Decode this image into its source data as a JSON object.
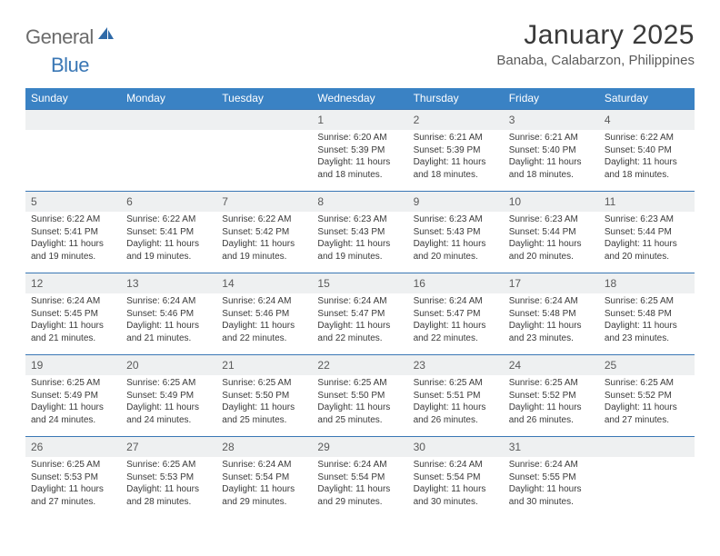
{
  "brand": {
    "part1": "General",
    "part2": "Blue"
  },
  "title": "January 2025",
  "location": "Banaba, Calabarzon, Philippines",
  "colors": {
    "header_bg": "#3a82c4",
    "header_fg": "#ffffff",
    "rule": "#3a77b5",
    "daynum_bg": "#eef0f1",
    "text": "#3a3a3a",
    "brand_gray": "#6b6b6b",
    "brand_blue": "#3a77b5"
  },
  "dayNames": [
    "Sunday",
    "Monday",
    "Tuesday",
    "Wednesday",
    "Thursday",
    "Friday",
    "Saturday"
  ],
  "weeks": [
    [
      null,
      null,
      null,
      {
        "n": "1",
        "rise": "6:20 AM",
        "set": "5:39 PM",
        "dlh": "11",
        "dlm": "18"
      },
      {
        "n": "2",
        "rise": "6:21 AM",
        "set": "5:39 PM",
        "dlh": "11",
        "dlm": "18"
      },
      {
        "n": "3",
        "rise": "6:21 AM",
        "set": "5:40 PM",
        "dlh": "11",
        "dlm": "18"
      },
      {
        "n": "4",
        "rise": "6:22 AM",
        "set": "5:40 PM",
        "dlh": "11",
        "dlm": "18"
      }
    ],
    [
      {
        "n": "5",
        "rise": "6:22 AM",
        "set": "5:41 PM",
        "dlh": "11",
        "dlm": "19"
      },
      {
        "n": "6",
        "rise": "6:22 AM",
        "set": "5:41 PM",
        "dlh": "11",
        "dlm": "19"
      },
      {
        "n": "7",
        "rise": "6:22 AM",
        "set": "5:42 PM",
        "dlh": "11",
        "dlm": "19"
      },
      {
        "n": "8",
        "rise": "6:23 AM",
        "set": "5:43 PM",
        "dlh": "11",
        "dlm": "19"
      },
      {
        "n": "9",
        "rise": "6:23 AM",
        "set": "5:43 PM",
        "dlh": "11",
        "dlm": "20"
      },
      {
        "n": "10",
        "rise": "6:23 AM",
        "set": "5:44 PM",
        "dlh": "11",
        "dlm": "20"
      },
      {
        "n": "11",
        "rise": "6:23 AM",
        "set": "5:44 PM",
        "dlh": "11",
        "dlm": "20"
      }
    ],
    [
      {
        "n": "12",
        "rise": "6:24 AM",
        "set": "5:45 PM",
        "dlh": "11",
        "dlm": "21"
      },
      {
        "n": "13",
        "rise": "6:24 AM",
        "set": "5:46 PM",
        "dlh": "11",
        "dlm": "21"
      },
      {
        "n": "14",
        "rise": "6:24 AM",
        "set": "5:46 PM",
        "dlh": "11",
        "dlm": "22"
      },
      {
        "n": "15",
        "rise": "6:24 AM",
        "set": "5:47 PM",
        "dlh": "11",
        "dlm": "22"
      },
      {
        "n": "16",
        "rise": "6:24 AM",
        "set": "5:47 PM",
        "dlh": "11",
        "dlm": "22"
      },
      {
        "n": "17",
        "rise": "6:24 AM",
        "set": "5:48 PM",
        "dlh": "11",
        "dlm": "23"
      },
      {
        "n": "18",
        "rise": "6:25 AM",
        "set": "5:48 PM",
        "dlh": "11",
        "dlm": "23"
      }
    ],
    [
      {
        "n": "19",
        "rise": "6:25 AM",
        "set": "5:49 PM",
        "dlh": "11",
        "dlm": "24"
      },
      {
        "n": "20",
        "rise": "6:25 AM",
        "set": "5:49 PM",
        "dlh": "11",
        "dlm": "24"
      },
      {
        "n": "21",
        "rise": "6:25 AM",
        "set": "5:50 PM",
        "dlh": "11",
        "dlm": "25"
      },
      {
        "n": "22",
        "rise": "6:25 AM",
        "set": "5:50 PM",
        "dlh": "11",
        "dlm": "25"
      },
      {
        "n": "23",
        "rise": "6:25 AM",
        "set": "5:51 PM",
        "dlh": "11",
        "dlm": "26"
      },
      {
        "n": "24",
        "rise": "6:25 AM",
        "set": "5:52 PM",
        "dlh": "11",
        "dlm": "26"
      },
      {
        "n": "25",
        "rise": "6:25 AM",
        "set": "5:52 PM",
        "dlh": "11",
        "dlm": "27"
      }
    ],
    [
      {
        "n": "26",
        "rise": "6:25 AM",
        "set": "5:53 PM",
        "dlh": "11",
        "dlm": "27"
      },
      {
        "n": "27",
        "rise": "6:25 AM",
        "set": "5:53 PM",
        "dlh": "11",
        "dlm": "28"
      },
      {
        "n": "28",
        "rise": "6:24 AM",
        "set": "5:54 PM",
        "dlh": "11",
        "dlm": "29"
      },
      {
        "n": "29",
        "rise": "6:24 AM",
        "set": "5:54 PM",
        "dlh": "11",
        "dlm": "29"
      },
      {
        "n": "30",
        "rise": "6:24 AM",
        "set": "5:54 PM",
        "dlh": "11",
        "dlm": "30"
      },
      {
        "n": "31",
        "rise": "6:24 AM",
        "set": "5:55 PM",
        "dlh": "11",
        "dlm": "30"
      },
      null
    ]
  ],
  "labels": {
    "sunrise": "Sunrise:",
    "sunset": "Sunset:",
    "daylight_prefix": "Daylight:",
    "hours_word": "hours",
    "and_word": "and",
    "minutes_word": "minutes."
  }
}
